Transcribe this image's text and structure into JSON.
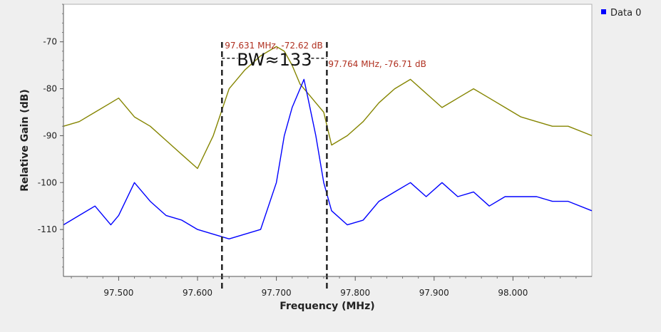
{
  "chart_data": {
    "type": "line",
    "xlabel": "Frequency (MHz)",
    "ylabel": "Relative Gain (dB)",
    "xlim": [
      97.43,
      98.1
    ],
    "ylim": [
      -120,
      -62
    ],
    "x_ticks": [
      97.5,
      97.6,
      97.7,
      97.8,
      97.9,
      98.0
    ],
    "x_tick_labels": [
      "97.500",
      "97.600",
      "97.700",
      "97.800",
      "97.900",
      "98.000"
    ],
    "y_ticks": [
      -70,
      -80,
      -90,
      -100,
      -110
    ],
    "y_tick_labels": [
      "-70",
      "-80",
      "-90",
      "-100",
      "-110"
    ],
    "grid": false,
    "legend_position": "top-right",
    "legend": [
      {
        "label": "Data 0",
        "color": "#0000ff"
      }
    ],
    "colors": {
      "data0": "#0000ff",
      "peak_hold": "#858500",
      "marker_text": "#b03020",
      "bandwidth_lines": "#222222"
    },
    "series": [
      {
        "name": "Data 0",
        "color": "#0000ff",
        "x": [
          97.43,
          97.45,
          97.47,
          97.49,
          97.5,
          97.52,
          97.54,
          97.56,
          97.58,
          97.6,
          97.62,
          97.64,
          97.66,
          97.68,
          97.7,
          97.71,
          97.72,
          97.73,
          97.735,
          97.74,
          97.75,
          97.76,
          97.77,
          97.79,
          97.81,
          97.83,
          97.85,
          97.87,
          97.89,
          97.91,
          97.93,
          97.95,
          97.97,
          97.99,
          98.01,
          98.03,
          98.05,
          98.07,
          98.1
        ],
        "values": [
          -109,
          -107,
          -105,
          -109,
          -107,
          -100,
          -104,
          -107,
          -108,
          -110,
          -111,
          -112,
          -111,
          -110,
          -100,
          -90,
          -84,
          -80,
          -78,
          -82,
          -90,
          -100,
          -106,
          -109,
          -108,
          -104,
          -102,
          -100,
          -103,
          -100,
          -103,
          -102,
          -105,
          -103,
          -103,
          -103,
          -104,
          -104,
          -106
        ]
      },
      {
        "name": "",
        "color": "#858500",
        "x": [
          97.43,
          97.45,
          97.47,
          97.49,
          97.5,
          97.52,
          97.54,
          97.56,
          97.58,
          97.6,
          97.62,
          97.64,
          97.66,
          97.68,
          97.7,
          97.71,
          97.72,
          97.73,
          97.74,
          97.75,
          97.76,
          97.77,
          97.79,
          97.81,
          97.83,
          97.85,
          97.87,
          97.89,
          97.91,
          97.93,
          97.95,
          97.97,
          97.99,
          98.01,
          98.03,
          98.05,
          98.07,
          98.1
        ],
        "values": [
          -88,
          -87,
          -85,
          -83,
          -82,
          -86,
          -88,
          -91,
          -94,
          -97,
          -90,
          -80,
          -76,
          -73,
          -71,
          -72,
          -75,
          -79,
          -81,
          -83,
          -85,
          -92,
          -90,
          -87,
          -83,
          -80,
          -78,
          -81,
          -84,
          -82,
          -80,
          -82,
          -84,
          -86,
          -87,
          -88,
          -88,
          -90
        ]
      }
    ],
    "annotations": [
      {
        "text": "97.631 MHz, -72.62 dB",
        "x": 97.631,
        "y": -72.62,
        "color": "#b03020"
      },
      {
        "text": "97.764 MHz, -76.71 dB",
        "x": 97.764,
        "y": -76.71,
        "color": "#b03020"
      },
      {
        "text": "BW≈133",
        "x": 97.6975,
        "y": -73.5,
        "color": "#111111"
      }
    ],
    "bandwidth_markers": [
      97.631,
      97.764
    ]
  }
}
